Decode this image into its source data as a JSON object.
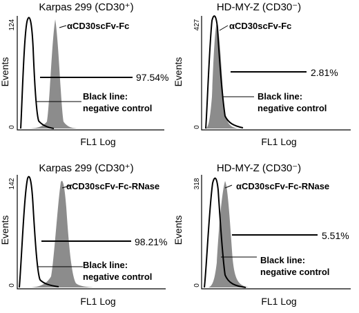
{
  "chart_data": [
    {
      "type": "area",
      "title": "Karpas 299 (CD30⁺)",
      "xlabel": "FL1 Log",
      "ylabel": "Events",
      "ymax_label": "124",
      "ymin_label": "0",
      "ylim": [
        0,
        124
      ],
      "xscale": "log",
      "xlim": [
        1,
        10000
      ],
      "series": [
        {
          "name": "αCD30scFv-Fc",
          "style": "filled",
          "color": "#8c8c8c",
          "peak_x": 180,
          "peak_y": 124
        },
        {
          "name": "Black line: negative control",
          "style": "line",
          "color": "#000000",
          "peak_x": 8,
          "peak_y": 122
        }
      ],
      "gate": {
        "label": "97.54%",
        "x_range": [
          50,
          10000
        ]
      },
      "annotations": {
        "marker": "αCD30scFv-Fc",
        "control_line1": "Black line:",
        "control_line2": "negative control"
      }
    },
    {
      "type": "area",
      "title": "HD-MY-Z (CD30⁻)",
      "xlabel": "FL1 Log",
      "ylabel": "Events",
      "ymax_label": "427",
      "ymin_label": "0",
      "ylim": [
        0,
        427
      ],
      "xscale": "log",
      "xlim": [
        1,
        10000
      ],
      "series": [
        {
          "name": "αCD30scFv-Fc",
          "style": "filled",
          "color": "#8c8c8c",
          "peak_x": 10,
          "peak_y": 420
        },
        {
          "name": "Black line: negative control",
          "style": "line",
          "color": "#000000",
          "peak_x": 9,
          "peak_y": 427
        }
      ],
      "gate": {
        "label": "2.81%",
        "x_range": [
          50,
          10000
        ]
      },
      "annotations": {
        "marker": "αCD30scFv-Fc",
        "control_line1": "Black line:",
        "control_line2": "negative control"
      }
    },
    {
      "type": "area",
      "title": "Karpas 299 (CD30⁺)",
      "xlabel": "FL1 Log",
      "ylabel": "Events",
      "ymax_label": "142",
      "ymin_label": "0",
      "ylim": [
        0,
        142
      ],
      "xscale": "log",
      "xlim": [
        1,
        10000
      ],
      "series": [
        {
          "name": "αCD30scFv-Fc-RNase",
          "style": "filled",
          "color": "#8c8c8c",
          "peak_x": 160,
          "peak_y": 130
        },
        {
          "name": "Black line: negative control",
          "style": "line",
          "color": "#000000",
          "peak_x": 8,
          "peak_y": 142
        }
      ],
      "gate": {
        "label": "98.21%",
        "x_range": [
          50,
          10000
        ]
      },
      "annotations": {
        "marker": "αCD30scFv-Fc-RNase",
        "control_line1": "Black line:",
        "control_line2": "negative control"
      }
    },
    {
      "type": "area",
      "title": "HD-MY-Z (CD30⁻)",
      "xlabel": "FL1 Log",
      "ylabel": "Events",
      "ymax_label": "318",
      "ymin_label": "0",
      "ylim": [
        0,
        318
      ],
      "xscale": "log",
      "xlim": [
        1,
        10000
      ],
      "series": [
        {
          "name": "αCD30scFv-Fc-RNase",
          "style": "filled",
          "color": "#8c8c8c",
          "peak_x": 18,
          "peak_y": 300
        },
        {
          "name": "Black line: negative control",
          "style": "line",
          "color": "#000000",
          "peak_x": 9,
          "peak_y": 318
        }
      ],
      "gate": {
        "label": "5.51%",
        "x_range": [
          50,
          10000
        ]
      },
      "annotations": {
        "marker": "αCD30scFv-Fc-RNase",
        "control_line1": "Black line:",
        "control_line2": "negative control"
      }
    }
  ]
}
